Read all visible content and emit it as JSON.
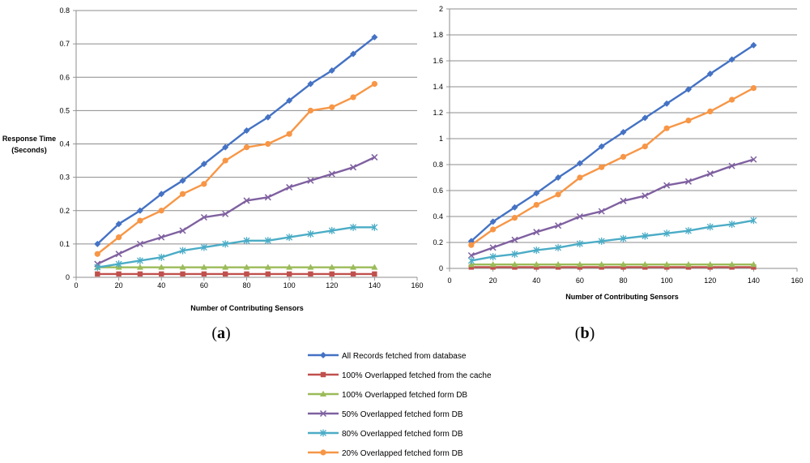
{
  "chart_data": [
    {
      "type": "line",
      "panel_label": "a",
      "xlabel": "Number of Contributing Sensors",
      "ylabel": [
        "Response Time",
        "(Seconds)"
      ],
      "xlim": [
        0,
        160
      ],
      "ylim": [
        0,
        0.8
      ],
      "xticks": [
        0,
        20,
        40,
        60,
        80,
        100,
        120,
        140,
        160
      ],
      "yticks": [
        0,
        0.1,
        0.2,
        0.3,
        0.4,
        0.5,
        0.6,
        0.7,
        0.8
      ],
      "x": [
        10,
        20,
        30,
        40,
        50,
        60,
        70,
        80,
        90,
        100,
        110,
        120,
        130,
        140
      ],
      "series": [
        {
          "name": "All Records fetched from database",
          "values": [
            0.1,
            0.16,
            0.2,
            0.25,
            0.29,
            0.34,
            0.39,
            0.44,
            0.48,
            0.53,
            0.58,
            0.62,
            0.67,
            0.72
          ]
        },
        {
          "name": "100% Overlapped fetched from the cache",
          "values": [
            0.01,
            0.01,
            0.01,
            0.01,
            0.01,
            0.01,
            0.01,
            0.01,
            0.01,
            0.01,
            0.01,
            0.01,
            0.01,
            0.01
          ]
        },
        {
          "name": "100% Overlapped fetched form DB",
          "values": [
            0.03,
            0.03,
            0.03,
            0.03,
            0.03,
            0.03,
            0.03,
            0.03,
            0.03,
            0.03,
            0.03,
            0.03,
            0.03,
            0.03
          ]
        },
        {
          "name": "50% Overlapped fetched form DB",
          "values": [
            0.04,
            0.07,
            0.1,
            0.12,
            0.14,
            0.18,
            0.19,
            0.23,
            0.24,
            0.27,
            0.29,
            0.31,
            0.33,
            0.36
          ]
        },
        {
          "name": "80% Overlapped fetched form DB",
          "values": [
            0.03,
            0.04,
            0.05,
            0.06,
            0.08,
            0.09,
            0.1,
            0.11,
            0.11,
            0.12,
            0.13,
            0.14,
            0.15,
            0.15
          ]
        },
        {
          "name": "20% Overlapped fetched form DB",
          "values": [
            0.07,
            0.12,
            0.17,
            0.2,
            0.25,
            0.28,
            0.35,
            0.39,
            0.4,
            0.43,
            0.5,
            0.51,
            0.54,
            0.58
          ]
        }
      ]
    },
    {
      "type": "line",
      "panel_label": "b",
      "xlabel": "Number of Contributing Sensors",
      "ylabel": [],
      "xlim": [
        0,
        160
      ],
      "ylim": [
        0,
        2
      ],
      "xticks": [
        0,
        20,
        40,
        60,
        80,
        100,
        120,
        140,
        160
      ],
      "yticks": [
        0,
        0.2,
        0.4,
        0.6,
        0.8,
        1,
        1.2,
        1.4,
        1.6,
        1.8,
        2
      ],
      "x": [
        10,
        20,
        30,
        40,
        50,
        60,
        70,
        80,
        90,
        100,
        110,
        120,
        130,
        140
      ],
      "series": [
        {
          "name": "All Records fetched from database",
          "values": [
            0.21,
            0.36,
            0.47,
            0.58,
            0.7,
            0.81,
            0.94,
            1.05,
            1.16,
            1.27,
            1.38,
            1.5,
            1.61,
            1.72
          ]
        },
        {
          "name": "100% Overlapped fetched from the cache",
          "values": [
            0.01,
            0.01,
            0.01,
            0.01,
            0.01,
            0.01,
            0.01,
            0.01,
            0.01,
            0.01,
            0.01,
            0.01,
            0.01,
            0.01
          ]
        },
        {
          "name": "100% Overlapped fetched form DB",
          "values": [
            0.03,
            0.03,
            0.03,
            0.03,
            0.03,
            0.03,
            0.03,
            0.03,
            0.03,
            0.03,
            0.03,
            0.03,
            0.03,
            0.03
          ]
        },
        {
          "name": "50% Overlapped fetched form DB",
          "values": [
            0.1,
            0.16,
            0.22,
            0.28,
            0.33,
            0.4,
            0.44,
            0.52,
            0.56,
            0.64,
            0.67,
            0.73,
            0.79,
            0.84
          ]
        },
        {
          "name": "80% Overlapped fetched form DB",
          "values": [
            0.06,
            0.09,
            0.11,
            0.14,
            0.16,
            0.19,
            0.21,
            0.23,
            0.25,
            0.27,
            0.29,
            0.32,
            0.34,
            0.37
          ]
        },
        {
          "name": "20% Overlapped fetched form DB",
          "values": [
            0.18,
            0.3,
            0.39,
            0.49,
            0.57,
            0.7,
            0.78,
            0.86,
            0.94,
            1.08,
            1.14,
            1.21,
            1.3,
            1.39
          ]
        }
      ]
    }
  ],
  "legend": {
    "position": "bottom-center",
    "entries": [
      {
        "name": "All Records fetched from database",
        "color": "#4472C4",
        "marker": "diamond"
      },
      {
        "name": "100% Overlapped fetched from the cache",
        "color": "#C0504D",
        "marker": "square"
      },
      {
        "name": "100% Overlapped fetched form DB",
        "color": "#9BBB59",
        "marker": "triangle"
      },
      {
        "name": "50% Overlapped fetched form DB",
        "color": "#7F60A0",
        "marker": "x"
      },
      {
        "name": "80% Overlapped fetched form DB",
        "color": "#4BACC6",
        "marker": "star"
      },
      {
        "name": "20% Overlapped fetched form DB",
        "color": "#F79646",
        "marker": "circle"
      }
    ]
  }
}
